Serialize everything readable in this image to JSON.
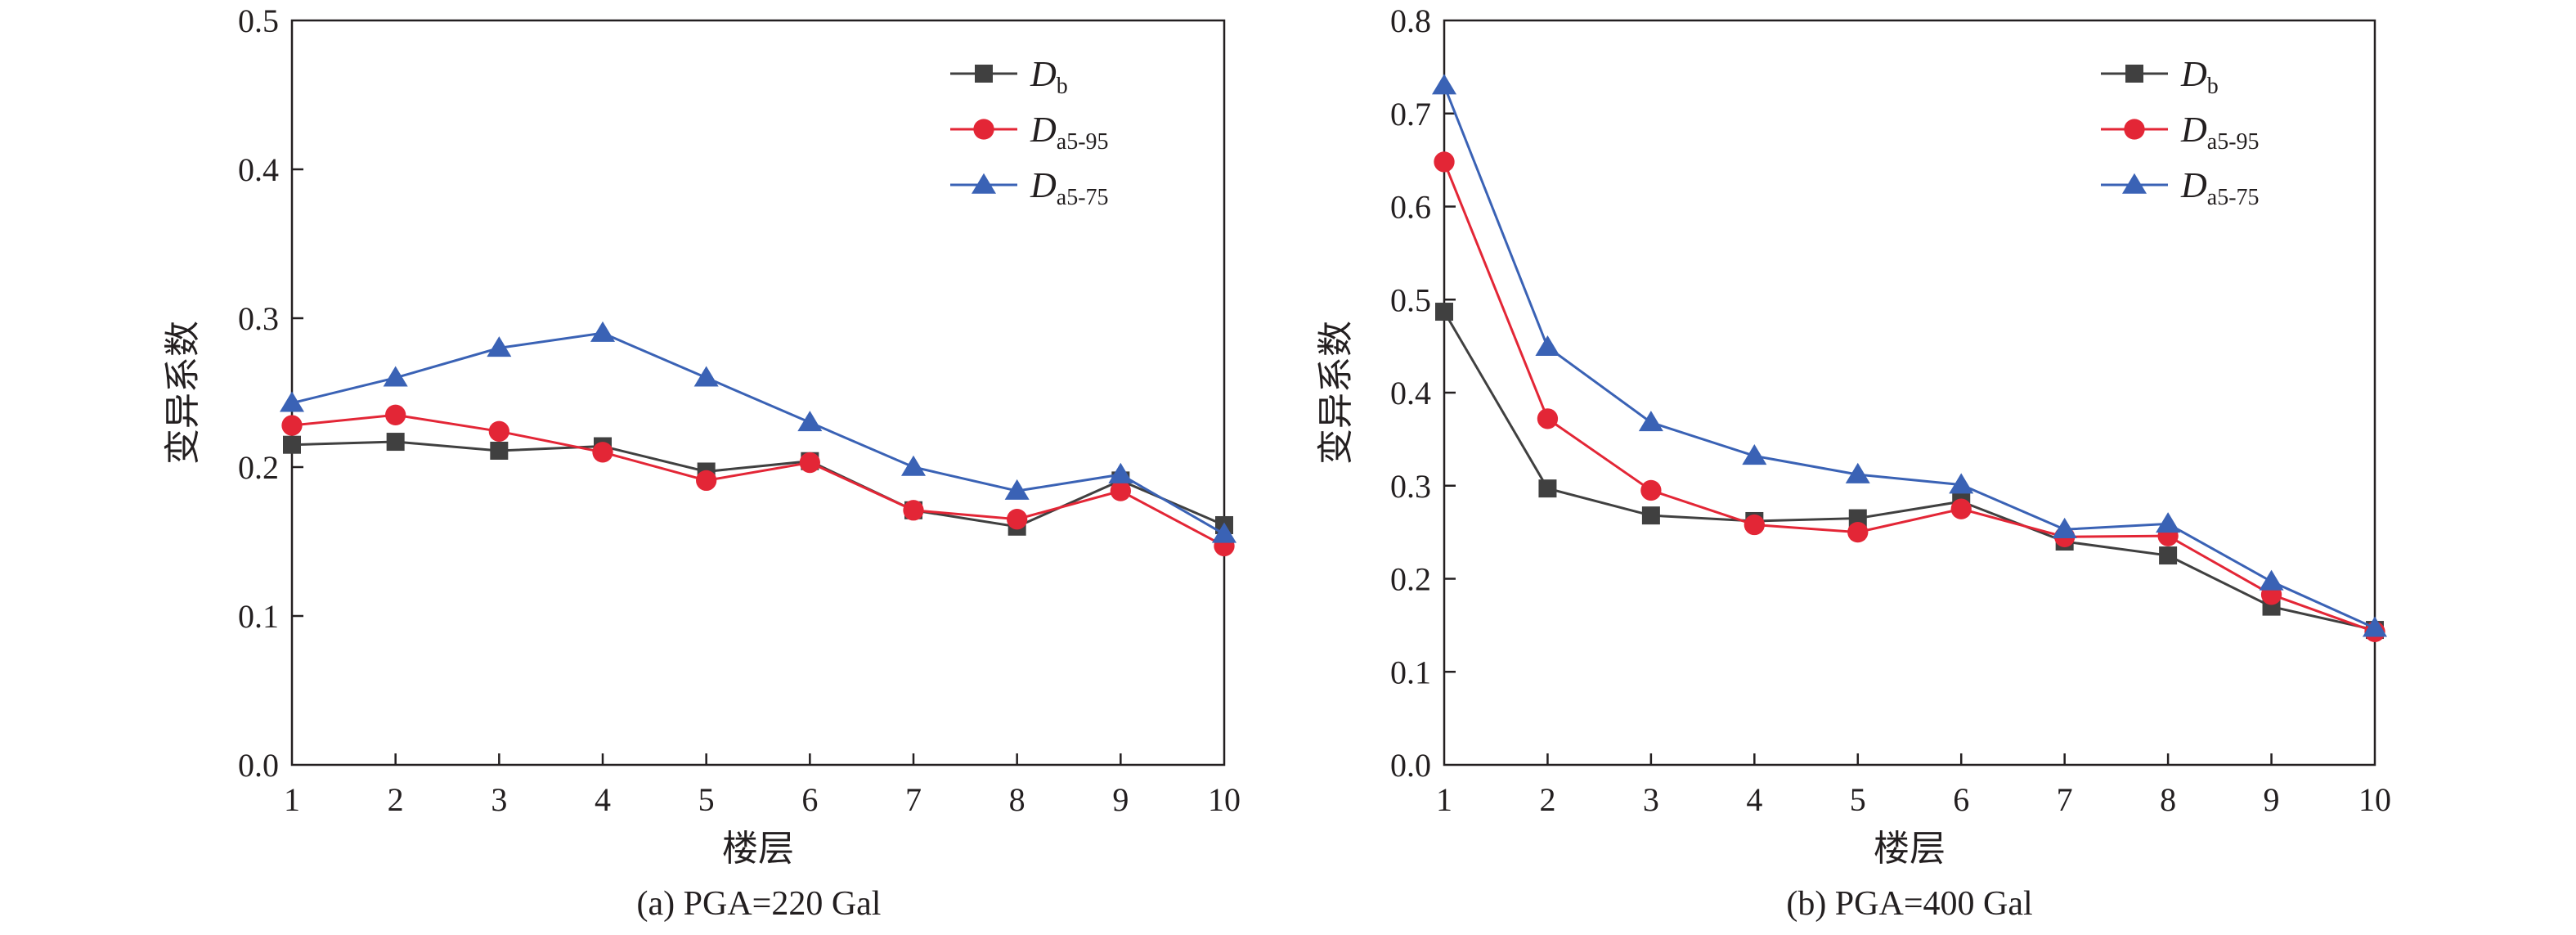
{
  "chart_data": [
    {
      "type": "line",
      "caption": "(a) PGA=220 Gal",
      "xlabel": "楼层",
      "ylabel": "变异系数",
      "x": [
        1,
        2,
        3,
        4,
        5,
        6,
        7,
        8,
        9,
        10
      ],
      "xlim": [
        1,
        10
      ],
      "ylim": [
        0.0,
        0.5
      ],
      "yticks": [
        "0.0",
        "0.1",
        "0.2",
        "0.3",
        "0.4",
        "0.5"
      ],
      "xticks": [
        "1",
        "2",
        "3",
        "4",
        "5",
        "6",
        "7",
        "8",
        "9",
        "10"
      ],
      "legend_position": "top-right",
      "grid": false,
      "series": [
        {
          "name_main": "D",
          "name_sub": "b",
          "color": "#404040",
          "marker": "square",
          "values": [
            0.215,
            0.217,
            0.211,
            0.214,
            0.197,
            0.204,
            0.171,
            0.16,
            0.191,
            0.161
          ]
        },
        {
          "name_main": "D",
          "name_sub": "a5-95",
          "color": "#e32636",
          "marker": "circle",
          "values": [
            0.228,
            0.235,
            0.224,
            0.21,
            0.191,
            0.203,
            0.171,
            0.165,
            0.184,
            0.147
          ]
        },
        {
          "name_main": "D",
          "name_sub": "a5-75",
          "color": "#3a62b5",
          "marker": "triangle",
          "values": [
            0.243,
            0.26,
            0.28,
            0.29,
            0.26,
            0.23,
            0.2,
            0.184,
            0.195,
            0.155
          ]
        }
      ]
    },
    {
      "type": "line",
      "caption": "(b) PGA=400 Gal",
      "xlabel": "楼层",
      "ylabel": "变异系数",
      "x": [
        1,
        2,
        3,
        4,
        5,
        6,
        7,
        8,
        9,
        10
      ],
      "xlim": [
        1,
        10
      ],
      "ylim": [
        0.0,
        0.8
      ],
      "yticks": [
        "0.0",
        "0.1",
        "0.2",
        "0.3",
        "0.4",
        "0.5",
        "0.6",
        "0.7",
        "0.8"
      ],
      "xticks": [
        "1",
        "2",
        "3",
        "4",
        "5",
        "6",
        "7",
        "8",
        "9",
        "10"
      ],
      "legend_position": "top-right",
      "grid": false,
      "series": [
        {
          "name_main": "D",
          "name_sub": "b",
          "color": "#404040",
          "marker": "square",
          "values": [
            0.487,
            0.297,
            0.268,
            0.262,
            0.265,
            0.283,
            0.24,
            0.225,
            0.17,
            0.145
          ]
        },
        {
          "name_main": "D",
          "name_sub": "a5-95",
          "color": "#e32636",
          "marker": "circle",
          "values": [
            0.648,
            0.372,
            0.295,
            0.258,
            0.25,
            0.275,
            0.245,
            0.246,
            0.183,
            0.143
          ]
        },
        {
          "name_main": "D",
          "name_sub": "a5-75",
          "color": "#3a62b5",
          "marker": "triangle",
          "values": [
            0.73,
            0.449,
            0.368,
            0.332,
            0.312,
            0.301,
            0.253,
            0.259,
            0.197,
            0.147
          ]
        }
      ]
    }
  ]
}
